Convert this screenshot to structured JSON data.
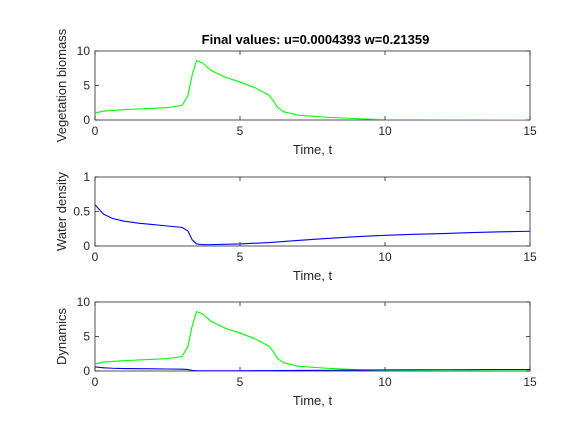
{
  "chart_data": [
    {
      "type": "line",
      "title": "Final values: u=0.0004393  w=0.21359",
      "xlabel": "Time, t",
      "ylabel": "Vegetation biomass",
      "xlim": [
        0,
        15
      ],
      "ylim": [
        0,
        10
      ],
      "xticks": [
        0,
        5,
        10,
        15
      ],
      "yticks": [
        0,
        5,
        10
      ],
      "grid": false,
      "series": [
        {
          "color": "#00ff00",
          "x": [
            0,
            0.3,
            1,
            2,
            2.5,
            3,
            3.2,
            3.35,
            3.5,
            3.7,
            4,
            4.5,
            5,
            5.5,
            6,
            6.15,
            6.3,
            6.5,
            7,
            8,
            9,
            10,
            11,
            12,
            13,
            14,
            15
          ],
          "y": [
            1.0,
            1.3,
            1.5,
            1.7,
            1.8,
            2.1,
            3.5,
            6.5,
            8.6,
            8.3,
            7.2,
            6.2,
            5.5,
            4.7,
            3.6,
            2.8,
            1.8,
            1.2,
            0.7,
            0.4,
            0.2,
            0.05,
            0.02,
            0.01,
            0.005,
            0.002,
            0.0004393
          ]
        }
      ]
    },
    {
      "type": "line",
      "title": "",
      "xlabel": "Time, t",
      "ylabel": "Water density",
      "xlim": [
        0,
        15
      ],
      "ylim": [
        0,
        1
      ],
      "xticks": [
        0,
        5,
        10,
        15
      ],
      "yticks": [
        0,
        0.5,
        1
      ],
      "grid": false,
      "series": [
        {
          "color": "#0000ff",
          "x": [
            0,
            0.1,
            0.3,
            0.6,
            1,
            1.5,
            2,
            2.5,
            3,
            3.2,
            3.35,
            3.5,
            3.7,
            4,
            5,
            6,
            7,
            8,
            9,
            10,
            11,
            12,
            13,
            14,
            15
          ],
          "y": [
            0.6,
            0.55,
            0.46,
            0.4,
            0.36,
            0.33,
            0.31,
            0.29,
            0.27,
            0.22,
            0.09,
            0.03,
            0.02,
            0.02,
            0.03,
            0.05,
            0.08,
            0.11,
            0.135,
            0.155,
            0.17,
            0.18,
            0.195,
            0.205,
            0.21359
          ]
        }
      ]
    },
    {
      "type": "line",
      "title": "",
      "xlabel": "Time, t",
      "ylabel": "Dynamics",
      "xlim": [
        0,
        15
      ],
      "ylim": [
        0,
        10
      ],
      "xticks": [
        0,
        5,
        10,
        15
      ],
      "yticks": [
        0,
        5,
        10
      ],
      "grid": false,
      "series": [
        {
          "color": "#00ff00",
          "x": [
            0,
            0.3,
            1,
            2,
            2.5,
            3,
            3.2,
            3.35,
            3.5,
            3.7,
            4,
            4.5,
            5,
            5.5,
            6,
            6.15,
            6.3,
            6.5,
            7,
            8,
            9,
            10,
            11,
            12,
            13,
            14,
            15
          ],
          "y": [
            1.0,
            1.3,
            1.5,
            1.7,
            1.8,
            2.1,
            3.5,
            6.5,
            8.6,
            8.3,
            7.2,
            6.2,
            5.5,
            4.7,
            3.6,
            2.8,
            1.8,
            1.2,
            0.7,
            0.4,
            0.2,
            0.05,
            0.02,
            0.01,
            0.005,
            0.002,
            0.0004393
          ]
        },
        {
          "color": "#0000ff",
          "x": [
            0,
            0.1,
            0.3,
            0.6,
            1,
            1.5,
            2,
            2.5,
            3,
            3.2,
            3.35,
            3.5,
            3.7,
            4,
            5,
            6,
            7,
            8,
            9,
            10,
            11,
            12,
            13,
            14,
            15
          ],
          "y": [
            0.6,
            0.55,
            0.46,
            0.4,
            0.36,
            0.33,
            0.31,
            0.29,
            0.27,
            0.22,
            0.09,
            0.03,
            0.02,
            0.02,
            0.03,
            0.05,
            0.08,
            0.11,
            0.135,
            0.155,
            0.17,
            0.18,
            0.195,
            0.205,
            0.21359
          ]
        }
      ]
    }
  ]
}
